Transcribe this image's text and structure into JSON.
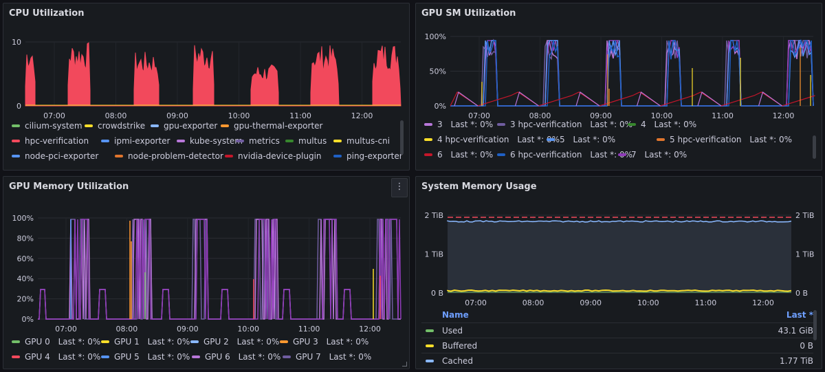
{
  "panels": {
    "cpu": {
      "title": "CPU Utilization",
      "y_ticks": [
        "10",
        "0"
      ],
      "x_ticks": [
        "07:00",
        "08:00",
        "09:00",
        "10:00",
        "11:00",
        "12:00"
      ],
      "legend": [
        {
          "label": "cilium-system",
          "color": "#73bf69"
        },
        {
          "label": "crowdstrike",
          "color": "#fade2a"
        },
        {
          "label": "gpu-exporter",
          "color": "#8ab8ff"
        },
        {
          "label": "gpu-thermal-exporter",
          "color": "#ff9830"
        },
        {
          "label": "hpc-verification",
          "color": "#f2495c"
        },
        {
          "label": "ipmi-exporter",
          "color": "#5794f2"
        },
        {
          "label": "kube-system",
          "color": "#b877d9"
        },
        {
          "label": "metrics",
          "color": "#705da0"
        },
        {
          "label": "multus",
          "color": "#37872d"
        },
        {
          "label": "multus-cni",
          "color": "#fade2a"
        },
        {
          "label": "node-pci-exporter",
          "color": "#5794f2"
        },
        {
          "label": "node-problem-detector",
          "color": "#e0752d"
        },
        {
          "label": "nvidia-device-plugin",
          "color": "#c4162a"
        },
        {
          "label": "ping-exporter",
          "color": "#1f60c4"
        }
      ]
    },
    "gpu_sm": {
      "title": "GPU SM Utilization",
      "y_ticks": [
        "100%",
        "50%",
        "0%"
      ],
      "x_ticks": [
        "07:00",
        "08:00",
        "09:00",
        "10:00",
        "11:00",
        "12:00"
      ],
      "legend": [
        {
          "label": "3",
          "value": "Last *: 0%",
          "color": "#b877d9"
        },
        {
          "label": "3 hpc-verification",
          "value": "Last *: 0%",
          "color": "#705da0"
        },
        {
          "label": "4",
          "value": "Last *: 0%",
          "color": "#37872d"
        },
        {
          "label": "4 hpc-verification",
          "value": "Last *: 0%",
          "color": "#fade2a"
        },
        {
          "label": "5",
          "value": "Last *: 0%",
          "color": "#5794f2"
        },
        {
          "label": "5 hpc-verification",
          "value": "Last *: 0%",
          "color": "#e0752d"
        },
        {
          "label": "6",
          "value": "Last *: 0%",
          "color": "#c4162a"
        },
        {
          "label": "6 hpc-verification",
          "value": "Last *: 0%",
          "color": "#1f60c4"
        },
        {
          "label": "7",
          "value": "Last *: 0%",
          "color": "#8f3bb8"
        }
      ]
    },
    "gpu_mem": {
      "title": "GPU Memory Utilization",
      "menu_icon": "⋮",
      "y_ticks": [
        "100%",
        "80%",
        "60%",
        "40%",
        "20%",
        "0%"
      ],
      "x_ticks": [
        "07:00",
        "08:00",
        "09:00",
        "10:00",
        "11:00",
        "12:00"
      ],
      "legend": [
        {
          "label": "GPU 0",
          "value": "Last *: 0%",
          "color": "#73bf69"
        },
        {
          "label": "GPU 1",
          "value": "Last *: 0%",
          "color": "#fade2a"
        },
        {
          "label": "GPU 2",
          "value": "Last *: 0%",
          "color": "#8ab8ff"
        },
        {
          "label": "GPU 3",
          "value": "Last *: 0%",
          "color": "#ff9830"
        },
        {
          "label": "GPU 4",
          "value": "Last *: 0%",
          "color": "#f2495c"
        },
        {
          "label": "GPU 5",
          "value": "Last *: 0%",
          "color": "#5794f2"
        },
        {
          "label": "GPU 6",
          "value": "Last *: 0%",
          "color": "#b877d9"
        },
        {
          "label": "GPU 7",
          "value": "Last *: 0%",
          "color": "#705da0"
        }
      ]
    },
    "sys_mem": {
      "title": "System Memory Usage",
      "y_ticks": [
        "2 TiB",
        "1 TiB",
        "0 B"
      ],
      "x_ticks": [
        "07:00",
        "08:00",
        "09:00",
        "10:00",
        "11:00",
        "12:00"
      ],
      "table_headers": {
        "name": "Name",
        "last": "Last *"
      },
      "rows": [
        {
          "label": "Used",
          "value": "43.1 GiB",
          "color": "#73bf69"
        },
        {
          "label": "Buffered",
          "value": "0 B",
          "color": "#fade2a"
        },
        {
          "label": "Cached",
          "value": "1.77 TiB",
          "color": "#8ab8ff"
        }
      ]
    }
  }
}
